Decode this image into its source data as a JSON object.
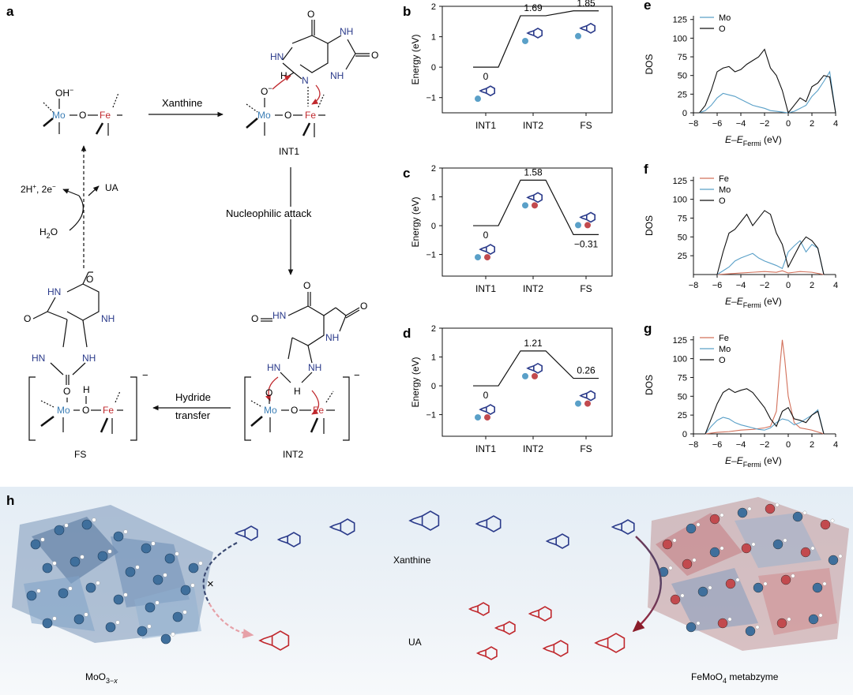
{
  "panels": {
    "a": {
      "letter": "a",
      "mechanism": {
        "top_left": {
          "oh": "OH",
          "charge": "−",
          "mo": "Mo",
          "o": "O",
          "fe": "Fe"
        },
        "int1": {
          "label": "INT1",
          "mo": "Mo",
          "o": "O",
          "fe": "Fe",
          "o_minus": "O",
          "minus": "−",
          "h": "H",
          "o_top": "O",
          "o_right": "O",
          "n_left": "HN",
          "nh_right": "NH",
          "n_mid": "N",
          "nh_bottom": "NH",
          "n_bot": "N"
        },
        "int2": {
          "label": "INT2",
          "mo": "Mo",
          "o": "O",
          "fe": "Fe",
          "o_top": "O",
          "o_right": "O",
          "hn": "HN",
          "nh1": "N",
          "nh2": "H",
          "nh3": "NH",
          "n4": "N",
          "h": "H",
          "o_left": "O",
          "charge": "−"
        },
        "fs": {
          "label": "FS",
          "mo": "Mo",
          "o": "O",
          "fe": "Fe",
          "h": "H",
          "o_top": "O",
          "o_left": "O",
          "o_bottom": "O",
          "hn1": "H",
          "n1": "N",
          "nh1": "N",
          "h1": "H",
          "hn2": "H",
          "n2": "N",
          "nh2": "N",
          "h2": "H",
          "charge": "−"
        },
        "arrows": {
          "xanthine": "Xanthine",
          "nucleophilic": "Nucleophilic attack",
          "hydride1": "Hydride",
          "hydride2": "transfer",
          "h2o": "H",
          "h2o_sub": "2",
          "h2o_o": "O",
          "ua": "UA",
          "protons": "2H",
          "protons_sup": "+",
          "electrons": ", 2e",
          "electrons_sup": "−"
        }
      }
    },
    "energy_profiles": [
      {
        "letter": "b",
        "ylabel": "Energy (eV)",
        "yticks": [
          "2",
          "1",
          "0",
          "−1"
        ],
        "xticks": [
          "INT1",
          "INT2",
          "FS"
        ],
        "values": [
          0,
          1.69,
          1.85
        ],
        "value_labels": [
          "0",
          "1.69",
          "1.85"
        ],
        "ylim": [
          -1.5,
          2
        ]
      },
      {
        "letter": "c",
        "ylabel": "Energy (eV)",
        "yticks": [
          "2",
          "1",
          "0",
          "−1"
        ],
        "xticks": [
          "INT1",
          "INT2",
          "FS"
        ],
        "values": [
          0,
          1.58,
          -0.31
        ],
        "value_labels": [
          "0",
          "1.58",
          "−0.31"
        ],
        "ylim": [
          -1.75,
          2
        ]
      },
      {
        "letter": "d",
        "ylabel": "Energy (eV)",
        "yticks": [
          "2",
          "1",
          "0",
          "−1"
        ],
        "xticks": [
          "INT1",
          "INT2",
          "FS"
        ],
        "values": [
          0,
          1.21,
          0.26
        ],
        "value_labels": [
          "0",
          "1.21",
          "0.26"
        ],
        "ylim": [
          -1.75,
          2
        ]
      }
    ],
    "dos_plots": [
      {
        "letter": "e",
        "ylabel": "DOS",
        "yticks": [
          "125",
          "100",
          "75",
          "50",
          "25",
          "0"
        ],
        "xticks": [
          "−8",
          "−6",
          "−4",
          "−2",
          "0",
          "2",
          "4"
        ],
        "xlabel": "E",
        "xlabel_mid": "–E",
        "xlabel_sub": "Fermi",
        "xlabel_end": " (eV)",
        "legend": [
          "Mo",
          "O"
        ],
        "series": [
          {
            "name": "Mo",
            "color": "#5aa0c8",
            "x": [
              -7.5,
              -7,
              -6.5,
              -6,
              -5.5,
              -5,
              -4.5,
              -4,
              -3.5,
              -3,
              -2.5,
              -2,
              -1.5,
              -1,
              -0.5,
              0,
              0.5,
              1,
              1.5,
              2,
              2.5,
              3,
              3.5,
              4
            ],
            "y": [
              0,
              3,
              10,
              20,
              26,
              24,
              22,
              18,
              14,
              10,
              8,
              6,
              3,
              2,
              1,
              0,
              2,
              6,
              10,
              22,
              30,
              42,
              55,
              0
            ]
          },
          {
            "name": "O",
            "color": "#111111",
            "x": [
              -7.5,
              -7,
              -6.5,
              -6,
              -5.5,
              -5,
              -4.5,
              -4,
              -3.5,
              -3,
              -2.5,
              -2,
              -1.5,
              -1,
              -0.5,
              0,
              0.5,
              1,
              1.5,
              2,
              2.5,
              3,
              3.5,
              4
            ],
            "y": [
              0,
              10,
              30,
              55,
              60,
              62,
              55,
              58,
              65,
              70,
              75,
              85,
              60,
              50,
              30,
              0,
              10,
              20,
              15,
              35,
              40,
              50,
              48,
              0
            ]
          }
        ]
      },
      {
        "letter": "f",
        "ylabel": "DOS",
        "yticks": [
          "125",
          "100",
          "75",
          "50",
          "25"
        ],
        "xticks": [
          "−8",
          "−6",
          "−4",
          "−2",
          "0",
          "2",
          "4"
        ],
        "xlabel": "E",
        "xlabel_mid": "–E",
        "xlabel_sub": "Fermi",
        "xlabel_end": " (eV)",
        "legend": [
          "Fe",
          "Mo",
          "O"
        ],
        "series": [
          {
            "name": "Fe",
            "color": "#d2705a",
            "x": [
              -6,
              -5,
              -4,
              -3,
              -2,
              -1,
              -0.5,
              0,
              0.5,
              1,
              2,
              3
            ],
            "y": [
              0,
              1,
              2,
              3,
              4,
              3,
              5,
              2,
              3,
              4,
              3,
              0
            ]
          },
          {
            "name": "Mo",
            "color": "#5aa0c8",
            "x": [
              -6,
              -5.5,
              -5,
              -4.5,
              -4,
              -3.5,
              -3,
              -2.5,
              -2,
              -1.5,
              -1,
              -0.5,
              0,
              0.5,
              1,
              1.5,
              2,
              2.5,
              3
            ],
            "y": [
              0,
              5,
              10,
              18,
              22,
              25,
              28,
              22,
              18,
              15,
              12,
              8,
              30,
              38,
              45,
              30,
              40,
              35,
              0
            ]
          },
          {
            "name": "O",
            "color": "#111111",
            "x": [
              -6,
              -5.5,
              -5,
              -4.5,
              -4,
              -3.5,
              -3,
              -2.5,
              -2,
              -1.5,
              -1,
              -0.5,
              0,
              0.5,
              1,
              1.5,
              2,
              2.5,
              3
            ],
            "y": [
              0,
              30,
              55,
              60,
              70,
              80,
              65,
              75,
              85,
              80,
              55,
              40,
              10,
              25,
              40,
              50,
              45,
              35,
              0
            ]
          }
        ]
      },
      {
        "letter": "g",
        "ylabel": "DOS",
        "yticks": [
          "125",
          "100",
          "75",
          "50",
          "25",
          "0"
        ],
        "xticks": [
          "−8",
          "−6",
          "−4",
          "−2",
          "0",
          "2",
          "4"
        ],
        "xlabel": "E",
        "xlabel_mid": "–E",
        "xlabel_sub": "Fermi",
        "xlabel_end": " (eV)",
        "legend": [
          "Fe",
          "Mo",
          "O"
        ],
        "series": [
          {
            "name": "Fe",
            "color": "#d2705a",
            "x": [
              -7,
              -6,
              -5,
              -4,
              -3,
              -2,
              -1.5,
              -1,
              -0.7,
              -0.5,
              -0.3,
              0,
              0.5,
              1,
              2,
              3
            ],
            "y": [
              0,
              2,
              3,
              5,
              6,
              8,
              10,
              30,
              90,
              125,
              100,
              50,
              15,
              8,
              5,
              0
            ]
          },
          {
            "name": "Mo",
            "color": "#5aa0c8",
            "x": [
              -7,
              -6.5,
              -6,
              -5.5,
              -5,
              -4.5,
              -4,
              -3.5,
              -3,
              -2.5,
              -2,
              -1.5,
              -1,
              -0.5,
              0,
              0.5,
              1,
              1.5,
              2,
              2.5,
              3
            ],
            "y": [
              0,
              10,
              18,
              22,
              20,
              15,
              12,
              10,
              8,
              6,
              5,
              8,
              15,
              20,
              18,
              12,
              15,
              20,
              25,
              32,
              0
            ]
          },
          {
            "name": "O",
            "color": "#111111",
            "x": [
              -7,
              -6.5,
              -6,
              -5.5,
              -5,
              -4.5,
              -4,
              -3.5,
              -3,
              -2.5,
              -2,
              -1.5,
              -1,
              -0.5,
              0,
              0.5,
              1,
              1.5,
              2,
              2.5,
              3
            ],
            "y": [
              0,
              20,
              40,
              55,
              60,
              55,
              58,
              60,
              55,
              45,
              35,
              20,
              10,
              30,
              35,
              20,
              18,
              15,
              25,
              30,
              0
            ]
          }
        ]
      }
    ],
    "h": {
      "letter": "h",
      "xanthine_label": "Xanthine",
      "ua_label": "UA",
      "moo_label": "MoO",
      "moo_sub": "3−",
      "moo_sub_x": "x",
      "femoo_label": "FeMoO",
      "femoo_sub": "4",
      "femoo_suffix": " metabzyme",
      "blocked_mark": "×"
    }
  }
}
